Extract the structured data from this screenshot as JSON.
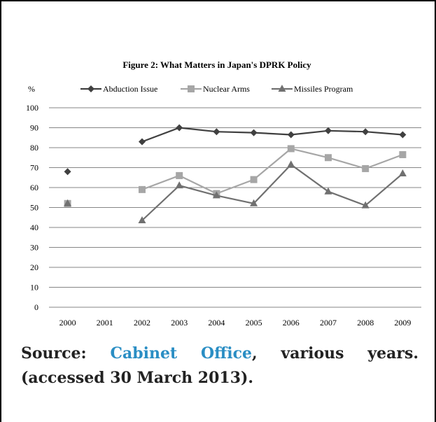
{
  "chart_data": {
    "type": "line",
    "title": "Figure 2: What Matters in Japan's DPRK Policy",
    "ylabel": "%",
    "xlabel": "",
    "categories": [
      "2000",
      "2001",
      "2002",
      "2003",
      "2004",
      "2005",
      "2006",
      "2007",
      "2008",
      "2009"
    ],
    "yticks": [
      "0",
      "10",
      "20",
      "30",
      "40",
      "50",
      "60",
      "70",
      "80",
      "90",
      "100"
    ],
    "ylim": [
      0,
      100
    ],
    "grid": true,
    "legend_position": "top",
    "series": [
      {
        "name": "Abduction Issue",
        "color": "#404040",
        "marker": "diamond",
        "values": [
          68,
          null,
          83,
          90,
          88,
          87.5,
          86.5,
          88.5,
          88,
          86.5
        ]
      },
      {
        "name": "Nuclear Arms",
        "color": "#a6a6a6",
        "marker": "square",
        "values": [
          52,
          null,
          59,
          66,
          57,
          64,
          79.5,
          75,
          69.5,
          76.5
        ]
      },
      {
        "name": "Missiles Program",
        "color": "#707070",
        "marker": "triangle",
        "values": [
          52,
          null,
          43.5,
          61,
          56,
          52,
          71.5,
          58,
          51,
          67
        ]
      }
    ]
  },
  "caption": {
    "prefix": "Source: ",
    "link": "Cabinet Office",
    "suffix": ", various years. (accessed 30 March 2013)."
  }
}
